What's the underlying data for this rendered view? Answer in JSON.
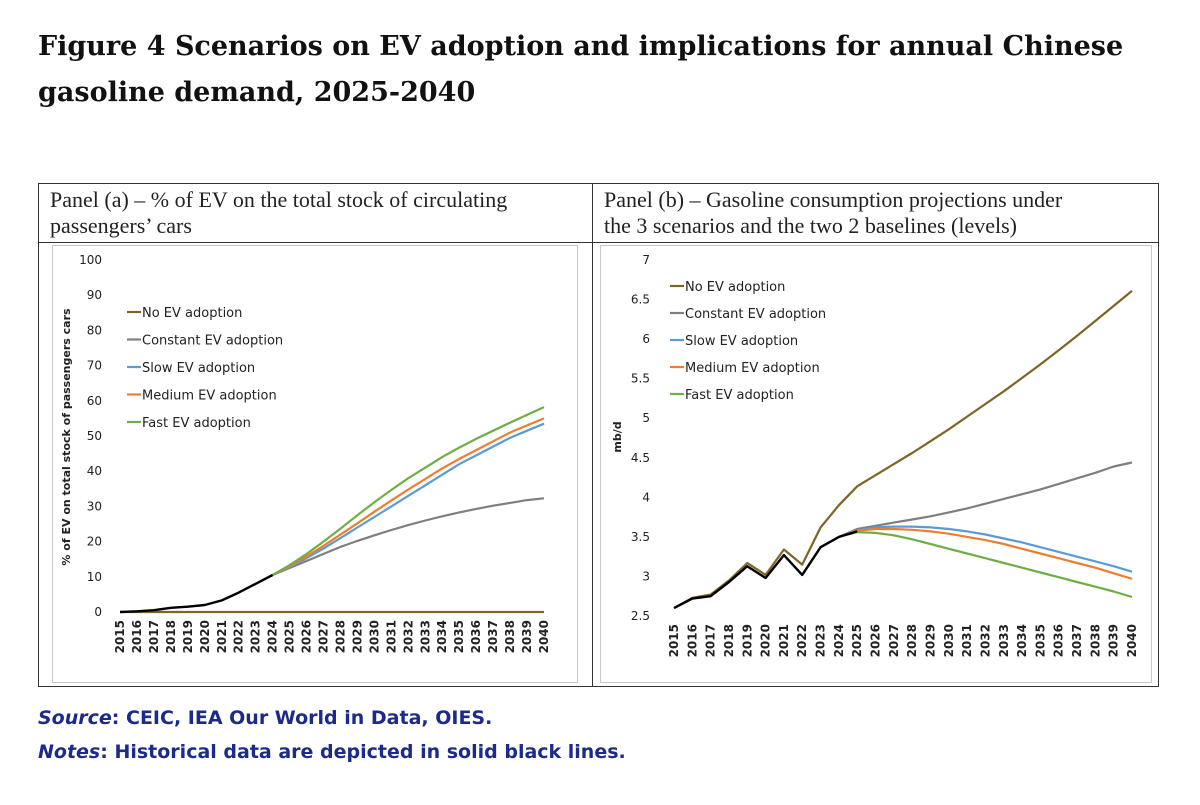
{
  "figure": {
    "label": "Figure 4",
    "title": "Scenarios on EV adoption and implications for annual Chinese gasoline demand, 2025-2040"
  },
  "footer": {
    "source_label": "Source",
    "source_text": ": CEIC, IEA Our World in Data, OIES.",
    "notes_label": "Notes",
    "notes_text": ": Historical data are depicted in solid black lines."
  },
  "colors": {
    "no_ev": "#7d6427",
    "constant": "#7f7f7f",
    "slow": "#5b9bd5",
    "medium": "#ed7d31",
    "fast": "#70ad47",
    "historical": "#000000"
  },
  "chart_data": [
    {
      "type": "line",
      "panel_title_line1": "Panel (a) – % of EV on the total stock of circulating",
      "panel_title_line2": "passengers’ cars",
      "ylabel": "% of EV on total stock of passengers cars",
      "xlabel": "",
      "ylim": [
        0,
        100
      ],
      "yticks": [
        "0",
        "10",
        "20",
        "30",
        "40",
        "50",
        "60",
        "70",
        "80",
        "90",
        "100"
      ],
      "x": [
        "2015",
        "2016",
        "2017",
        "2018",
        "2019",
        "2020",
        "2021",
        "2022",
        "2023",
        "2024",
        "2025",
        "2026",
        "2027",
        "2028",
        "2029",
        "2030",
        "2031",
        "2032",
        "2033",
        "2034",
        "2035",
        "2036",
        "2037",
        "2038",
        "2039",
        "2040"
      ],
      "legend_position": "upper-left",
      "historical": {
        "name": "Historical",
        "values": [
          0,
          0.2,
          0.5,
          1.2,
          1.5,
          2,
          3.3,
          5.5,
          8,
          10.5,
          null,
          null,
          null,
          null,
          null,
          null,
          null,
          null,
          null,
          null,
          null,
          null,
          null,
          null,
          null,
          null
        ]
      },
      "series": [
        {
          "name": "No EV adoption",
          "color_key": "no_ev",
          "values": [
            0,
            0,
            0,
            0,
            0,
            0,
            0,
            0,
            0,
            0,
            0,
            0,
            0,
            0,
            0,
            0,
            0,
            0,
            0,
            0,
            0,
            0,
            0,
            0,
            0,
            0
          ]
        },
        {
          "name": "Constant EV adoption",
          "color_key": "constant",
          "values": [
            null,
            null,
            null,
            null,
            null,
            null,
            null,
            null,
            null,
            10.5,
            12.5,
            14.5,
            16.5,
            18.5,
            20.2,
            21.8,
            23.3,
            24.7,
            26,
            27.2,
            28.3,
            29.3,
            30.2,
            31,
            31.8,
            32.3
          ]
        },
        {
          "name": "Slow EV adoption",
          "color_key": "slow",
          "values": [
            null,
            null,
            null,
            null,
            null,
            null,
            null,
            null,
            null,
            10.5,
            12.8,
            15.3,
            18,
            21,
            24,
            27,
            30,
            33,
            36,
            39,
            42,
            44.5,
            47,
            49.5,
            51.5,
            53.5
          ]
        },
        {
          "name": "Medium EV adoption",
          "color_key": "medium",
          "values": [
            null,
            null,
            null,
            null,
            null,
            null,
            null,
            null,
            null,
            10.5,
            13,
            15.8,
            18.8,
            22,
            25.2,
            28.5,
            31.7,
            34.8,
            37.8,
            40.8,
            43.5,
            46,
            48.5,
            51,
            53,
            55
          ]
        },
        {
          "name": "Fast EV adoption",
          "color_key": "fast",
          "values": [
            null,
            null,
            null,
            null,
            null,
            null,
            null,
            null,
            null,
            10.5,
            13.3,
            16.5,
            20,
            23.7,
            27.5,
            31.2,
            34.7,
            38,
            41,
            44,
            46.7,
            49.2,
            51.5,
            53.8,
            56,
            58.2
          ]
        }
      ]
    },
    {
      "type": "line",
      "panel_title_line1": "Panel (b) – Gasoline consumption projections under",
      "panel_title_line2": "the 3 scenarios and the two 2 baselines (levels)",
      "ylabel": "mb/d",
      "xlabel": "",
      "ylim": [
        2.5,
        7
      ],
      "yticks": [
        "2.5",
        "3",
        "3.5",
        "4",
        "4.5",
        "5",
        "5.5",
        "6",
        "6.5",
        "7"
      ],
      "x": [
        "2015",
        "2016",
        "2017",
        "2018",
        "2019",
        "2020",
        "2021",
        "2022",
        "2023",
        "2024",
        "2025",
        "2026",
        "2027",
        "2028",
        "2029",
        "2030",
        "2031",
        "2032",
        "2033",
        "2034",
        "2035",
        "2036",
        "2037",
        "2038",
        "2039",
        "2040"
      ],
      "legend_position": "upper-left",
      "historical": {
        "name": "Historical",
        "values": [
          2.6,
          2.72,
          2.75,
          2.93,
          3.13,
          2.98,
          3.27,
          3.02,
          3.37,
          3.5,
          3.57,
          null,
          null,
          null,
          null,
          null,
          null,
          null,
          null,
          null,
          null,
          null,
          null,
          null,
          null,
          null
        ]
      },
      "series": [
        {
          "name": "No EV adoption",
          "color_key": "no_ev",
          "values": [
            2.6,
            2.73,
            2.77,
            2.95,
            3.17,
            3.02,
            3.34,
            3.15,
            3.62,
            3.9,
            4.14,
            4.28,
            4.42,
            4.56,
            4.71,
            4.86,
            5.02,
            5.18,
            5.34,
            5.51,
            5.68,
            5.86,
            6.04,
            6.23,
            6.42,
            6.61
          ]
        },
        {
          "name": "Constant EV adoption",
          "color_key": "constant",
          "values": [
            null,
            null,
            null,
            null,
            null,
            null,
            null,
            null,
            null,
            3.5,
            3.6,
            3.64,
            3.68,
            3.72,
            3.76,
            3.81,
            3.86,
            3.92,
            3.98,
            4.04,
            4.1,
            4.17,
            4.24,
            4.31,
            4.39,
            4.44
          ]
        },
        {
          "name": "Slow EV adoption",
          "color_key": "slow",
          "values": [
            null,
            null,
            null,
            null,
            null,
            null,
            null,
            null,
            null,
            3.5,
            3.58,
            3.62,
            3.63,
            3.63,
            3.62,
            3.6,
            3.57,
            3.53,
            3.48,
            3.43,
            3.37,
            3.31,
            3.25,
            3.19,
            3.13,
            3.06
          ]
        },
        {
          "name": "Medium EV adoption",
          "color_key": "medium",
          "values": [
            null,
            null,
            null,
            null,
            null,
            null,
            null,
            null,
            null,
            3.5,
            3.58,
            3.6,
            3.6,
            3.59,
            3.57,
            3.54,
            3.5,
            3.46,
            3.41,
            3.35,
            3.29,
            3.23,
            3.17,
            3.11,
            3.04,
            2.97
          ]
        },
        {
          "name": "Fast EV adoption",
          "color_key": "fast",
          "values": [
            null,
            null,
            null,
            null,
            null,
            null,
            null,
            null,
            null,
            3.5,
            3.56,
            3.55,
            3.52,
            3.47,
            3.41,
            3.35,
            3.29,
            3.23,
            3.17,
            3.11,
            3.05,
            2.99,
            2.93,
            2.87,
            2.81,
            2.74
          ]
        }
      ]
    }
  ]
}
